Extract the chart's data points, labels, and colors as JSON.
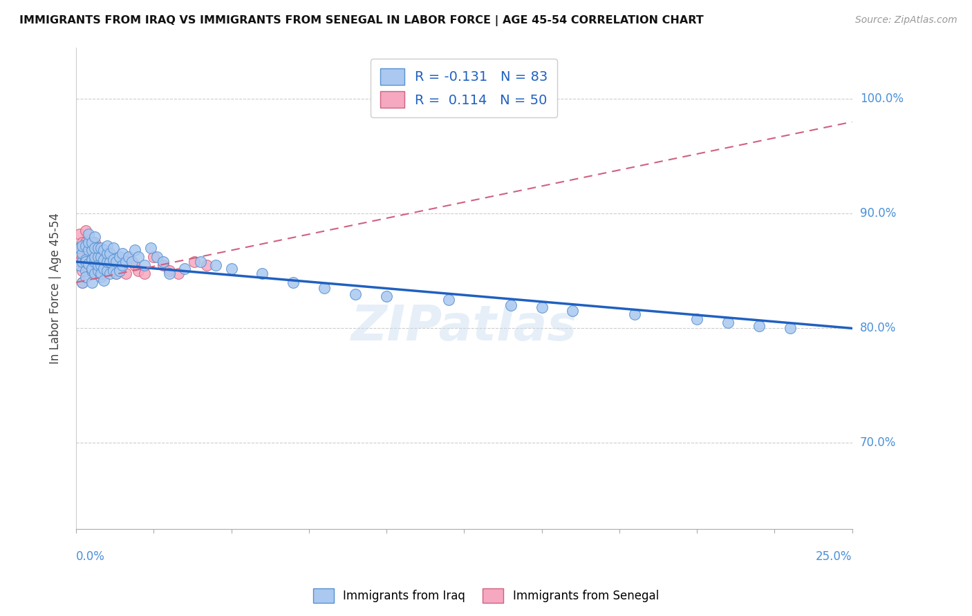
{
  "title": "IMMIGRANTS FROM IRAQ VS IMMIGRANTS FROM SENEGAL IN LABOR FORCE | AGE 45-54 CORRELATION CHART",
  "source": "Source: ZipAtlas.com",
  "ylabel": "In Labor Force | Age 45-54",
  "ylabel_ticks": [
    "70.0%",
    "80.0%",
    "90.0%",
    "100.0%"
  ],
  "ylabel_tick_values": [
    0.7,
    0.8,
    0.9,
    1.0
  ],
  "xlim": [
    0.0,
    0.25
  ],
  "ylim": [
    0.625,
    1.045
  ],
  "iraq_color": "#aac8f0",
  "senegal_color": "#f5a8c0",
  "iraq_edge_color": "#5590d0",
  "senegal_edge_color": "#d06080",
  "iraq_line_color": "#2060c0",
  "senegal_line_color": "#d06080",
  "watermark": "ZIPatlas",
  "iraq_R": -0.131,
  "iraq_N": 83,
  "senegal_R": 0.114,
  "senegal_N": 50,
  "iraq_scatter_x": [
    0.001,
    0.001,
    0.002,
    0.002,
    0.002,
    0.002,
    0.003,
    0.003,
    0.003,
    0.003,
    0.003,
    0.004,
    0.004,
    0.004,
    0.004,
    0.005,
    0.005,
    0.005,
    0.005,
    0.005,
    0.005,
    0.006,
    0.006,
    0.006,
    0.006,
    0.006,
    0.007,
    0.007,
    0.007,
    0.007,
    0.008,
    0.008,
    0.008,
    0.008,
    0.008,
    0.009,
    0.009,
    0.009,
    0.009,
    0.01,
    0.01,
    0.01,
    0.01,
    0.011,
    0.011,
    0.011,
    0.012,
    0.012,
    0.012,
    0.013,
    0.013,
    0.014,
    0.014,
    0.015,
    0.015,
    0.016,
    0.017,
    0.018,
    0.019,
    0.02,
    0.022,
    0.024,
    0.026,
    0.028,
    0.03,
    0.035,
    0.04,
    0.045,
    0.05,
    0.06,
    0.07,
    0.08,
    0.09,
    0.1,
    0.12,
    0.14,
    0.15,
    0.16,
    0.18,
    0.2,
    0.21,
    0.22,
    0.23
  ],
  "iraq_scatter_y": [
    0.855,
    0.87,
    0.858,
    0.84,
    0.865,
    0.872,
    0.86,
    0.85,
    0.845,
    0.858,
    0.872,
    0.856,
    0.868,
    0.875,
    0.882,
    0.85,
    0.86,
    0.868,
    0.852,
    0.84,
    0.875,
    0.848,
    0.858,
    0.862,
    0.87,
    0.88,
    0.85,
    0.862,
    0.87,
    0.855,
    0.845,
    0.855,
    0.862,
    0.87,
    0.848,
    0.852,
    0.86,
    0.868,
    0.842,
    0.85,
    0.858,
    0.865,
    0.872,
    0.848,
    0.858,
    0.865,
    0.85,
    0.86,
    0.87,
    0.848,
    0.858,
    0.85,
    0.862,
    0.855,
    0.865,
    0.858,
    0.862,
    0.858,
    0.868,
    0.862,
    0.855,
    0.87,
    0.862,
    0.858,
    0.848,
    0.852,
    0.858,
    0.855,
    0.852,
    0.848,
    0.84,
    0.835,
    0.83,
    0.828,
    0.825,
    0.82,
    0.818,
    0.815,
    0.812,
    0.808,
    0.805,
    0.802,
    0.8
  ],
  "senegal_scatter_x": [
    0.001,
    0.001,
    0.001,
    0.002,
    0.002,
    0.002,
    0.002,
    0.003,
    0.003,
    0.003,
    0.003,
    0.004,
    0.004,
    0.004,
    0.004,
    0.005,
    0.005,
    0.005,
    0.005,
    0.006,
    0.006,
    0.006,
    0.007,
    0.007,
    0.007,
    0.008,
    0.008,
    0.008,
    0.009,
    0.009,
    0.01,
    0.01,
    0.011,
    0.011,
    0.012,
    0.013,
    0.014,
    0.015,
    0.016,
    0.017,
    0.018,
    0.019,
    0.02,
    0.022,
    0.025,
    0.028,
    0.03,
    0.033,
    0.038,
    0.042
  ],
  "senegal_scatter_y": [
    0.87,
    0.882,
    0.858,
    0.875,
    0.862,
    0.85,
    0.84,
    0.868,
    0.855,
    0.875,
    0.885,
    0.858,
    0.87,
    0.85,
    0.862,
    0.848,
    0.86,
    0.87,
    0.855,
    0.858,
    0.865,
    0.875,
    0.855,
    0.862,
    0.87,
    0.852,
    0.86,
    0.855,
    0.848,
    0.858,
    0.855,
    0.862,
    0.85,
    0.858,
    0.852,
    0.848,
    0.858,
    0.855,
    0.848,
    0.862,
    0.858,
    0.855,
    0.85,
    0.848,
    0.862,
    0.855,
    0.85,
    0.848,
    0.858,
    0.855
  ],
  "iraq_line_x0": 0.0,
  "iraq_line_x1": 0.25,
  "iraq_line_y0": 0.858,
  "iraq_line_y1": 0.8,
  "senegal_line_x0": 0.0,
  "senegal_line_x1": 0.25,
  "senegal_line_y0": 0.84,
  "senegal_line_y1": 0.98
}
